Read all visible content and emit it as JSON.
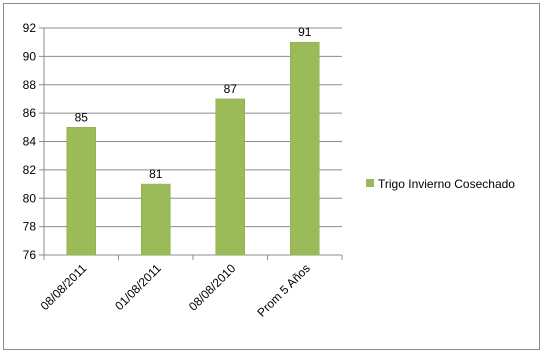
{
  "chart_data": {
    "type": "bar",
    "categories": [
      "08/08/2011",
      "01/08/2011",
      "08/08/2010",
      "Prom 5 Años"
    ],
    "series": [
      {
        "name": "Trigo Invierno Cosechado",
        "values": [
          85,
          81,
          87,
          91
        ],
        "color": "#9bbb59"
      }
    ],
    "data_labels": [
      "85",
      "81",
      "87",
      "91"
    ],
    "ylim": [
      76,
      92
    ],
    "yticks": [
      "76",
      "78",
      "80",
      "82",
      "84",
      "86",
      "88",
      "90",
      "92"
    ],
    "ytick_values": [
      76,
      78,
      80,
      82,
      84,
      86,
      88,
      90,
      92
    ],
    "grid": true,
    "legend_position": "right",
    "title": "",
    "xlabel": "",
    "ylabel": ""
  }
}
